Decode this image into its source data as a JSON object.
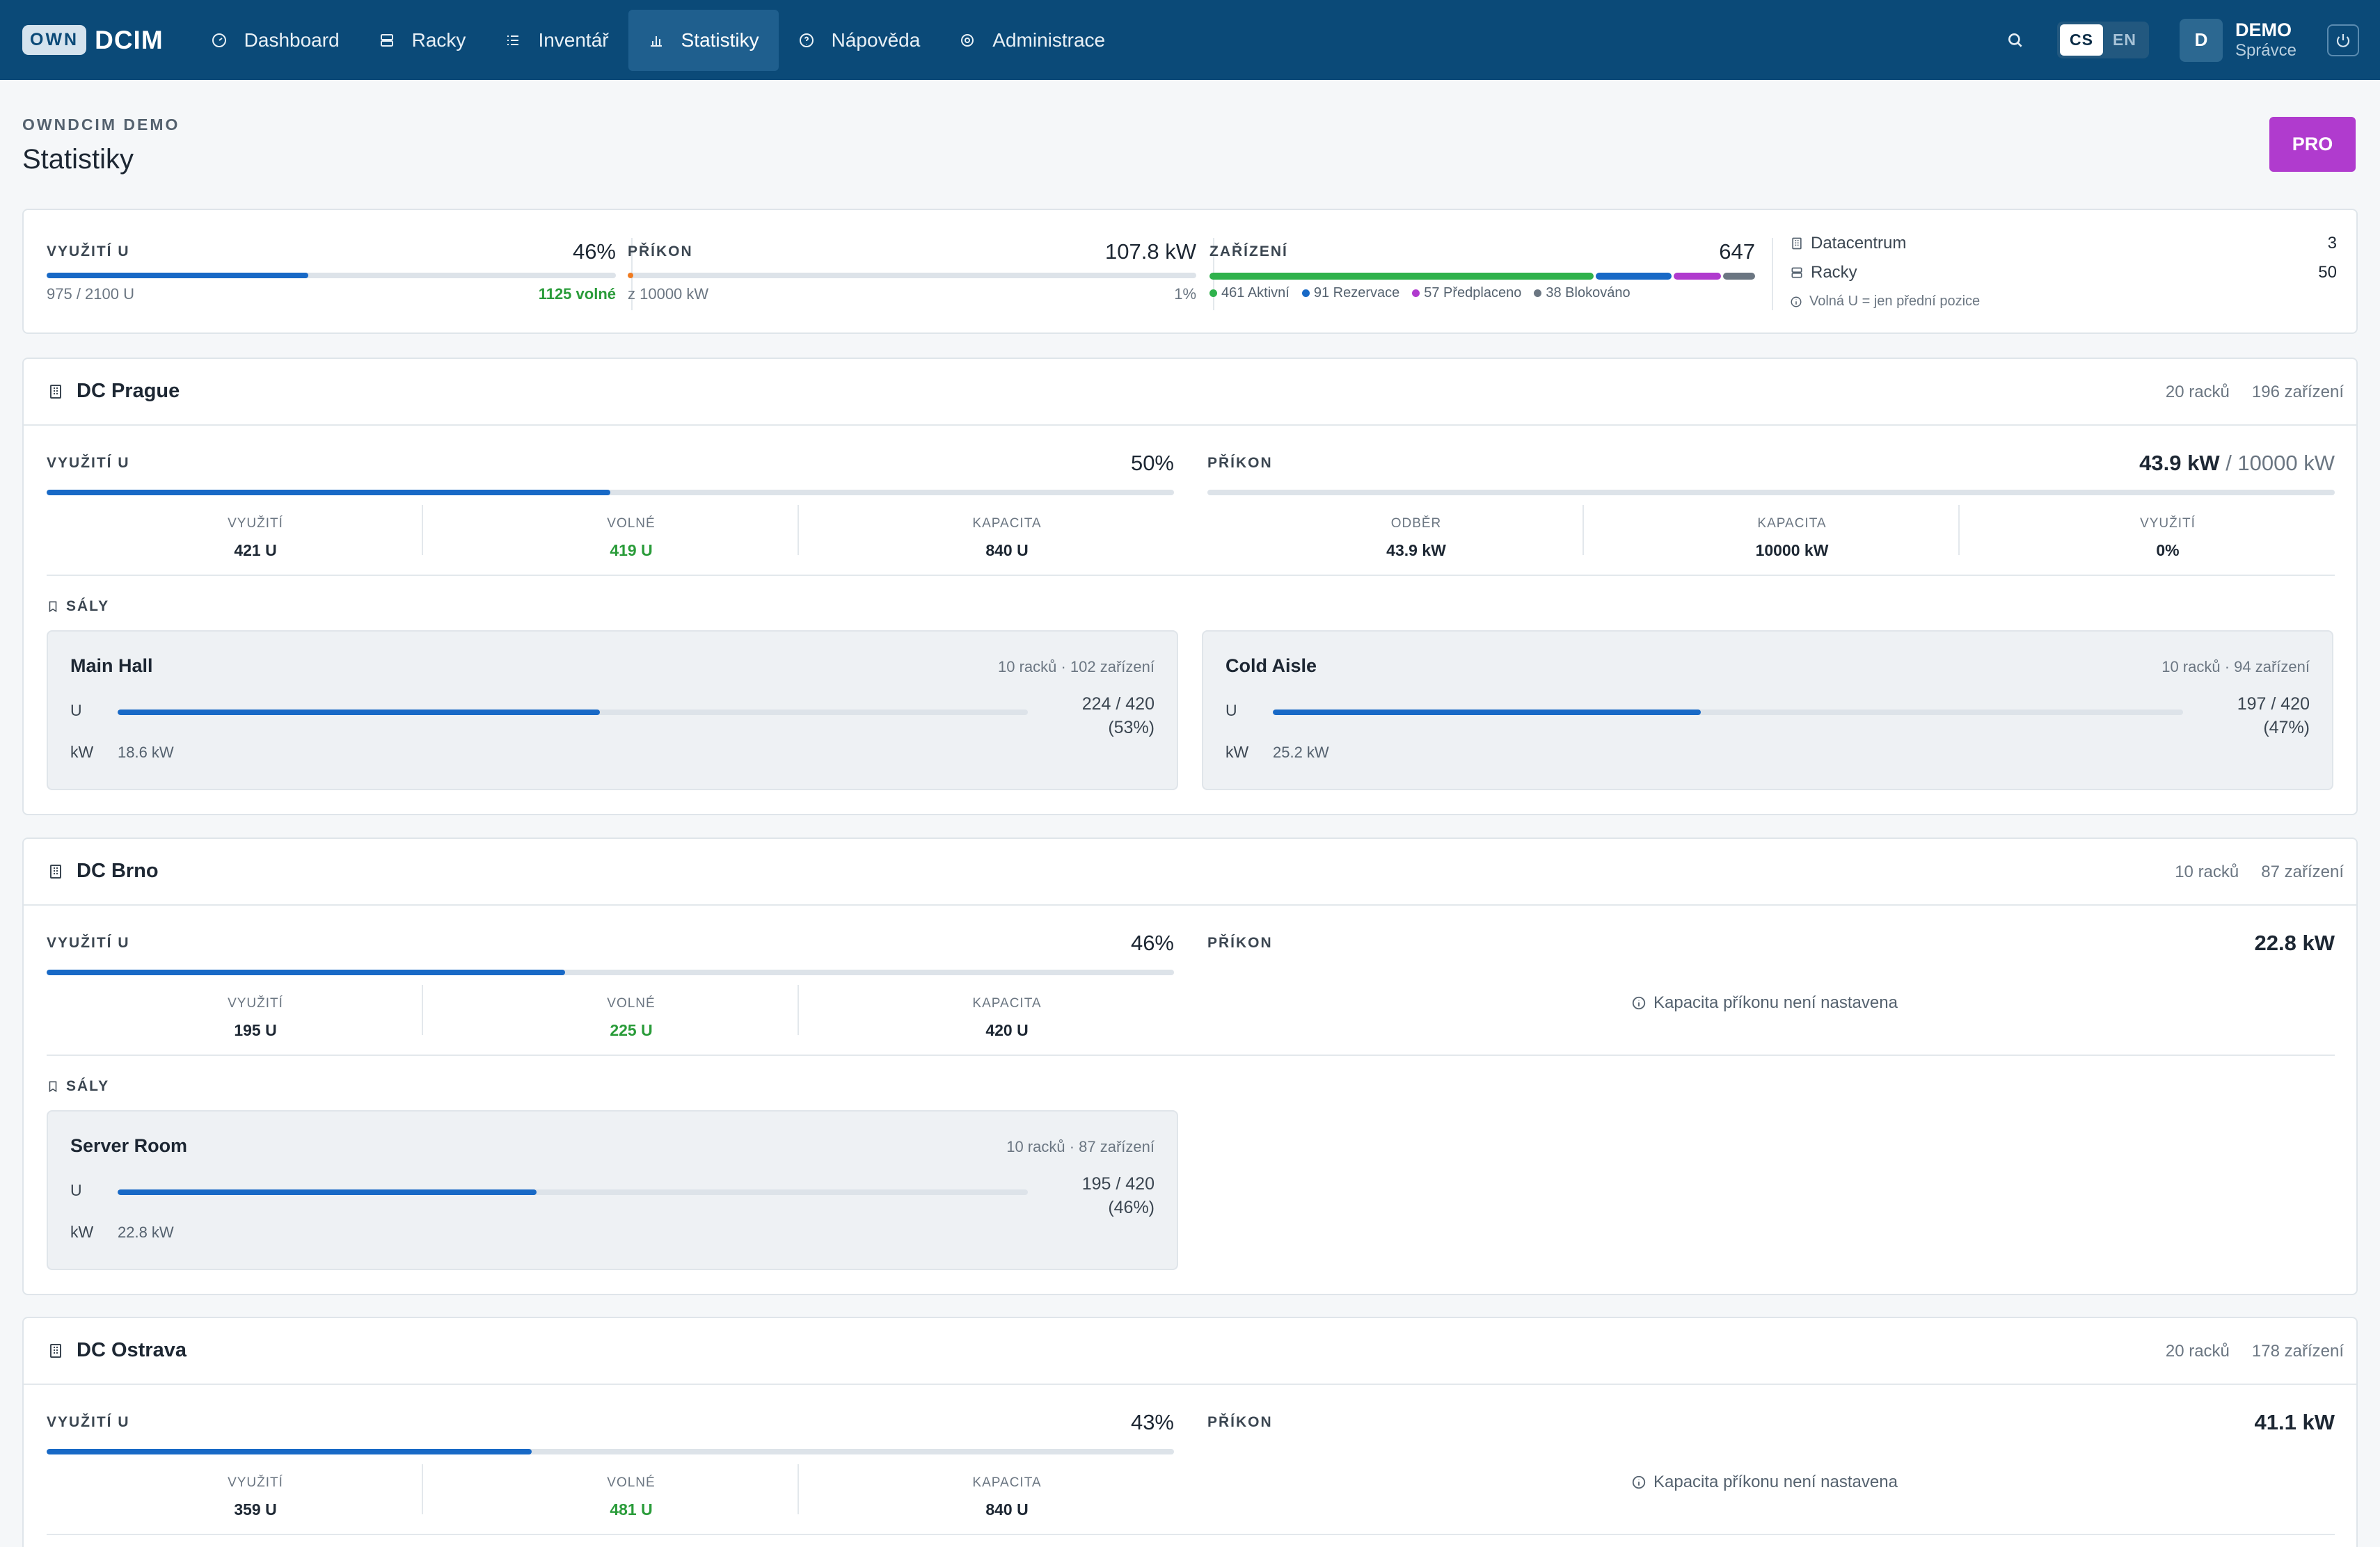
{
  "app": {
    "logo_own": "OWN",
    "logo_dcim": "DCIM"
  },
  "nav": [
    {
      "label": "Dashboard",
      "icon": "dashboard-icon"
    },
    {
      "label": "Racky",
      "icon": "server-icon"
    },
    {
      "label": "Inventář",
      "icon": "list-icon"
    },
    {
      "label": "Statistiky",
      "icon": "bar-chart-icon",
      "active": true
    },
    {
      "label": "Nápověda",
      "icon": "help-icon"
    },
    {
      "label": "Administrace",
      "icon": "gear-icon"
    }
  ],
  "lang": {
    "cs": "CS",
    "en": "EN",
    "active": "CS"
  },
  "user": {
    "initial": "D",
    "name": "DEMO",
    "role": "Správce"
  },
  "page": {
    "eyebrow": "OWNDCIM DEMO",
    "title": "Statistiky",
    "pro_label": "PRO"
  },
  "summary": {
    "usage": {
      "label": "VYUŽITÍ U",
      "value": "46%",
      "fraction": 0.46,
      "sub": "975 / 2100 U",
      "free": "1125 volné"
    },
    "power": {
      "label": "PŘÍKON",
      "value": "107.8 kW",
      "fraction": 0.01,
      "sub": "z 10000 kW",
      "pct": "1%"
    },
    "devices": {
      "label": "ZAŘÍZENÍ",
      "value": "647",
      "legend": [
        {
          "text": "461 Aktivní",
          "count": 461,
          "color": "#2fb24c"
        },
        {
          "text": "91 Rezervace",
          "count": 91,
          "color": "#1869c6"
        },
        {
          "text": "57 Předplaceno",
          "count": 57,
          "color": "#b03bce"
        },
        {
          "text": "38 Blokováno",
          "count": 38,
          "color": "#6b7682"
        }
      ]
    },
    "info": {
      "dc_label": "Datacentrum",
      "dc_value": "3",
      "racks_label": "Racky",
      "racks_value": "50",
      "note": "Volná U = jen přední pozice"
    }
  },
  "labels": {
    "usage": "VYUŽITÍ U",
    "power": "PŘÍKON",
    "halls": "SÁLY",
    "k_used": "VYUŽITÍ",
    "k_free": "VOLNÉ",
    "k_capacity": "KAPACITA",
    "k_draw": "ODBĚR",
    "k_pcap": "KAPACITA",
    "k_putil": "VYUŽITÍ",
    "no_power_cap": "Kapacita příkonu není nastavena",
    "u": "U",
    "kw": "kW"
  },
  "datacenters": [
    {
      "name": "DC Prague",
      "racks": "20 racků",
      "devices": "196 zařízení",
      "usage_pct": "50%",
      "usage_fraction": 0.5,
      "used": "421 U",
      "free": "419 U",
      "capacity": "840 U",
      "power_value": "43.9 kW",
      "power_cap": " / 10000 kW",
      "draw": "43.9 kW",
      "pcap": "10000 kW",
      "putil": "0%",
      "halls": [
        {
          "name": "Main Hall",
          "meta": "10 racků · 102 zařízení",
          "fraction": 0.53,
          "ratio1": "224 / 420",
          "ratio2": "(53%)",
          "kw": "18.6 kW"
        },
        {
          "name": "Cold Aisle",
          "meta": "10 racků · 94 zařízení",
          "fraction": 0.47,
          "ratio1": "197 / 420",
          "ratio2": "(47%)",
          "kw": "25.2 kW"
        }
      ]
    },
    {
      "name": "DC Brno",
      "racks": "10 racků",
      "devices": "87 zařízení",
      "usage_pct": "46%",
      "usage_fraction": 0.46,
      "used": "195 U",
      "free": "225 U",
      "capacity": "420 U",
      "power_value": "22.8 kW",
      "halls": [
        {
          "name": "Server Room",
          "meta": "10 racků · 87 zařízení",
          "fraction": 0.46,
          "ratio1": "195 / 420",
          "ratio2": "(46%)",
          "kw": "22.8 kW"
        }
      ]
    },
    {
      "name": "DC Ostrava",
      "racks": "20 racků",
      "devices": "178 zařízení",
      "usage_pct": "43%",
      "usage_fraction": 0.43,
      "used": "359 U",
      "free": "481 U",
      "capacity": "840 U",
      "power_value": "41.1 kW"
    }
  ]
}
